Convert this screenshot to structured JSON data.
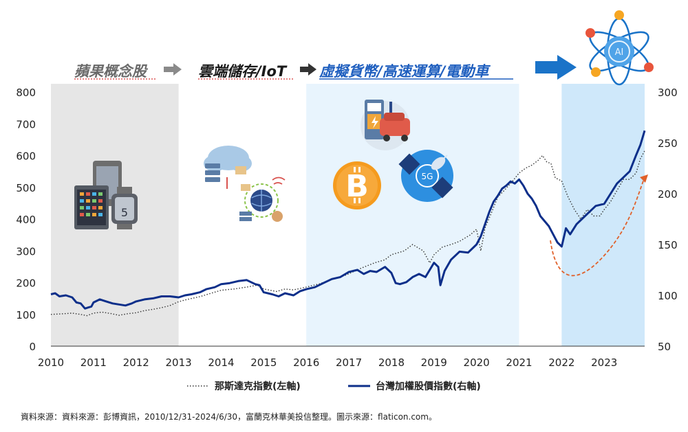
{
  "phases": [
    {
      "label": "蘋果概念股"
    },
    {
      "label": "雲端儲存/IoT"
    },
    {
      "label": "虛擬貨幣/高速運算/電動車"
    }
  ],
  "icons": {
    "apple": "smartphone-tablet-watch-icon",
    "cloud": "cloud-storage-network-icon",
    "ev": "ev-charging-station-icon",
    "bitcoin": "bitcoin-icon",
    "satellite": "satellite-5g-icon",
    "ai": "ai-atom-icon",
    "ai_text": "AI",
    "fiveg_text": "5G"
  },
  "colors": {
    "nasdaq": "#333333",
    "taiex": "#0d2f8a",
    "shade_gray": "#e6e6e6",
    "shade_lightblue": "#e8f4fd",
    "shade_blue": "#cfe8fa",
    "arrow_gray": "#8a8a8a",
    "arrow_dark": "#333333",
    "arrow_blue": "#1a73c8",
    "trend": "#e0602a"
  },
  "source_text": "資料來源：資料來源：彭博資訊，2010/12/31-2024/6/30，富蘭克林華美投信整理。圖示來源：flaticon.com。",
  "chart_data": {
    "type": "line",
    "title": "",
    "x_ticks": [
      2010,
      2011,
      2012,
      2013,
      2014,
      2015,
      2016,
      2017,
      2018,
      2019,
      2020,
      2021,
      2022,
      2023
    ],
    "xlim": [
      2010,
      2023.95
    ],
    "y_left": {
      "label": "",
      "ticks": [
        0,
        100,
        200,
        300,
        400,
        500,
        600,
        700,
        800
      ],
      "lim": [
        0,
        800
      ]
    },
    "y_right": {
      "label": "",
      "ticks": [
        50,
        100,
        150,
        200,
        250,
        300
      ],
      "lim": [
        50,
        300
      ]
    },
    "grid": false,
    "legend_position": "bottom",
    "shaded_periods": [
      {
        "from": 2010,
        "to": 2013,
        "color": "gray"
      },
      {
        "from": 2016,
        "to": 2021,
        "color": "lightblue"
      },
      {
        "from": 2022,
        "to": 2023.95,
        "color": "blue"
      }
    ],
    "series": [
      {
        "name": "那斯達克指數(左軸)",
        "axis": "left",
        "style": "dotted",
        "points": [
          [
            2010.0,
            100
          ],
          [
            2010.3,
            102
          ],
          [
            2010.5,
            104
          ],
          [
            2010.7,
            100
          ],
          [
            2010.85,
            96
          ],
          [
            2011.0,
            104
          ],
          [
            2011.2,
            107
          ],
          [
            2011.4,
            103
          ],
          [
            2011.6,
            97
          ],
          [
            2011.8,
            102
          ],
          [
            2012.0,
            105
          ],
          [
            2012.2,
            112
          ],
          [
            2012.4,
            116
          ],
          [
            2012.6,
            121
          ],
          [
            2012.8,
            128
          ],
          [
            2013.0,
            140
          ],
          [
            2013.2,
            147
          ],
          [
            2013.5,
            156
          ],
          [
            2013.8,
            168
          ],
          [
            2014.0,
            176
          ],
          [
            2014.3,
            180
          ],
          [
            2014.6,
            186
          ],
          [
            2014.85,
            192
          ],
          [
            2015.0,
            180
          ],
          [
            2015.3,
            172
          ],
          [
            2015.5,
            180
          ],
          [
            2015.7,
            177
          ],
          [
            2016.0,
            186
          ],
          [
            2016.3,
            196
          ],
          [
            2016.6,
            210
          ],
          [
            2016.9,
            222
          ],
          [
            2017.0,
            228
          ],
          [
            2017.3,
            246
          ],
          [
            2017.6,
            262
          ],
          [
            2017.85,
            272
          ],
          [
            2018.0,
            288
          ],
          [
            2018.3,
            300
          ],
          [
            2018.5,
            320
          ],
          [
            2018.75,
            300
          ],
          [
            2018.9,
            262
          ],
          [
            2019.0,
            288
          ],
          [
            2019.2,
            312
          ],
          [
            2019.4,
            320
          ],
          [
            2019.6,
            330
          ],
          [
            2019.85,
            350
          ],
          [
            2020.0,
            368
          ],
          [
            2020.1,
            300
          ],
          [
            2020.2,
            372
          ],
          [
            2020.35,
            420
          ],
          [
            2020.5,
            470
          ],
          [
            2020.65,
            490
          ],
          [
            2020.85,
            520
          ],
          [
            2021.0,
            545
          ],
          [
            2021.15,
            560
          ],
          [
            2021.3,
            570
          ],
          [
            2021.45,
            585
          ],
          [
            2021.55,
            600
          ],
          [
            2021.65,
            580
          ],
          [
            2021.75,
            575
          ],
          [
            2021.85,
            530
          ],
          [
            2022.0,
            520
          ],
          [
            2022.15,
            470
          ],
          [
            2022.3,
            430
          ],
          [
            2022.45,
            400
          ],
          [
            2022.6,
            430
          ],
          [
            2022.75,
            410
          ],
          [
            2022.9,
            410
          ],
          [
            2023.0,
            430
          ],
          [
            2023.15,
            455
          ],
          [
            2023.3,
            490
          ],
          [
            2023.45,
            525
          ],
          [
            2023.6,
            525
          ],
          [
            2023.75,
            545
          ],
          [
            2023.85,
            590
          ],
          [
            2023.95,
            615
          ]
        ]
      },
      {
        "name": "台灣加權股價指數(右軸)",
        "axis": "right",
        "style": "solid",
        "points": [
          [
            2010.0,
            101
          ],
          [
            2010.1,
            102
          ],
          [
            2010.2,
            99
          ],
          [
            2010.35,
            100
          ],
          [
            2010.5,
            98
          ],
          [
            2010.6,
            93
          ],
          [
            2010.7,
            92
          ],
          [
            2010.8,
            87
          ],
          [
            2010.95,
            89
          ],
          [
            2011.0,
            93
          ],
          [
            2011.15,
            96
          ],
          [
            2011.3,
            94
          ],
          [
            2011.45,
            92
          ],
          [
            2011.6,
            91
          ],
          [
            2011.75,
            90
          ],
          [
            2011.9,
            92
          ],
          [
            2012.0,
            94
          ],
          [
            2012.2,
            96
          ],
          [
            2012.4,
            97
          ],
          [
            2012.6,
            99
          ],
          [
            2012.8,
            99
          ],
          [
            2013.0,
            98
          ],
          [
            2013.15,
            100
          ],
          [
            2013.3,
            101
          ],
          [
            2013.5,
            103
          ],
          [
            2013.65,
            106
          ],
          [
            2013.85,
            108
          ],
          [
            2014.0,
            111
          ],
          [
            2014.2,
            112
          ],
          [
            2014.4,
            114
          ],
          [
            2014.6,
            115
          ],
          [
            2014.8,
            111
          ],
          [
            2014.9,
            110
          ],
          [
            2015.0,
            103
          ],
          [
            2015.2,
            101
          ],
          [
            2015.35,
            99
          ],
          [
            2015.5,
            102
          ],
          [
            2015.7,
            100
          ],
          [
            2015.85,
            104
          ],
          [
            2016.0,
            106
          ],
          [
            2016.2,
            108
          ],
          [
            2016.4,
            112
          ],
          [
            2016.6,
            116
          ],
          [
            2016.8,
            118
          ],
          [
            2017.0,
            123
          ],
          [
            2017.2,
            125
          ],
          [
            2017.35,
            121
          ],
          [
            2017.5,
            124
          ],
          [
            2017.65,
            123
          ],
          [
            2017.85,
            128
          ],
          [
            2018.0,
            122
          ],
          [
            2018.1,
            112
          ],
          [
            2018.2,
            111
          ],
          [
            2018.35,
            113
          ],
          [
            2018.5,
            118
          ],
          [
            2018.65,
            121
          ],
          [
            2018.8,
            118
          ],
          [
            2018.9,
            125
          ],
          [
            2019.0,
            132
          ],
          [
            2019.1,
            128
          ],
          [
            2019.15,
            110
          ],
          [
            2019.25,
            124
          ],
          [
            2019.4,
            135
          ],
          [
            2019.6,
            143
          ],
          [
            2019.8,
            142
          ],
          [
            2020.0,
            150
          ],
          [
            2020.1,
            158
          ],
          [
            2020.2,
            170
          ],
          [
            2020.3,
            182
          ],
          [
            2020.4,
            192
          ],
          [
            2020.5,
            198
          ],
          [
            2020.6,
            205
          ],
          [
            2020.7,
            208
          ],
          [
            2020.8,
            212
          ],
          [
            2020.9,
            210
          ],
          [
            2021.0,
            214
          ],
          [
            2021.1,
            208
          ],
          [
            2021.2,
            200
          ],
          [
            2021.3,
            195
          ],
          [
            2021.4,
            188
          ],
          [
            2021.5,
            178
          ],
          [
            2021.6,
            173
          ],
          [
            2021.7,
            168
          ],
          [
            2021.8,
            160
          ],
          [
            2021.9,
            152
          ],
          [
            2022.0,
            148
          ],
          [
            2022.1,
            166
          ],
          [
            2022.2,
            160
          ],
          [
            2022.35,
            170
          ],
          [
            2022.5,
            176
          ],
          [
            2022.65,
            182
          ],
          [
            2022.8,
            188
          ],
          [
            2023.0,
            190
          ],
          [
            2023.15,
            200
          ],
          [
            2023.3,
            210
          ],
          [
            2023.45,
            216
          ],
          [
            2023.6,
            222
          ],
          [
            2023.75,
            238
          ],
          [
            2023.85,
            248
          ],
          [
            2023.95,
            262
          ]
        ]
      }
    ]
  }
}
